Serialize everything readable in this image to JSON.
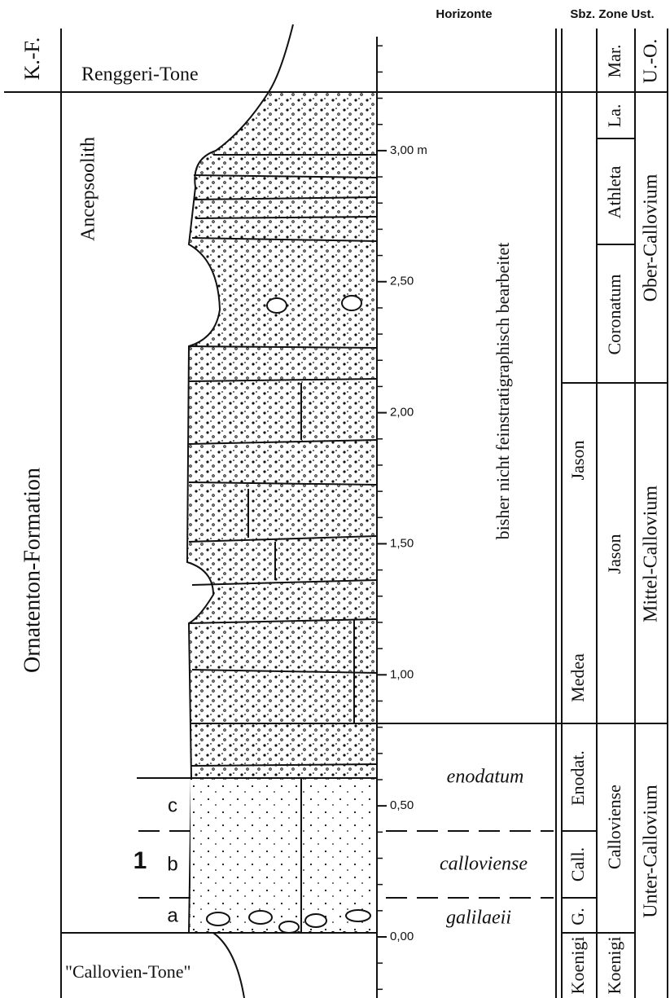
{
  "headers": {
    "horizonte": "Horizonte",
    "sbz_zone_ust": "Sbz. Zone Ust."
  },
  "formation": {
    "abbr": "K.-F.",
    "name": "Ornatenton-Formation"
  },
  "units": {
    "upper": "Renggeri-Tone",
    "member": "Ancepsoolith",
    "lower": "\"Callovien-Tone\""
  },
  "scale": {
    "ticks": [
      {
        "value": 0,
        "label": "0,00"
      },
      {
        "value": 0.5,
        "label": "0,50"
      },
      {
        "value": 1,
        "label": "1,00"
      },
      {
        "value": 1.5,
        "label": "1,50"
      },
      {
        "value": 2,
        "label": "2,00"
      },
      {
        "value": 2.5,
        "label": "2,50"
      },
      {
        "value": 3,
        "label": "3,00 m"
      }
    ]
  },
  "bed": {
    "number": "1",
    "subbeds": {
      "a": "a",
      "b": "b",
      "c": "c"
    }
  },
  "horizonte": {
    "note": "bisher nicht feinstratigraphisch bearbeitet",
    "items": [
      "enodatum",
      "calloviense",
      "galilaeii"
    ]
  },
  "subzones": [
    "Jason",
    "Medea",
    "Enodat.",
    "Call.",
    "G.",
    "Koenigi"
  ],
  "zones": [
    "Mar.",
    "La.",
    "Athleta",
    "Coronatum",
    "Jason",
    "Calloviense",
    "Koenigi"
  ],
  "stages": [
    "U.-O.",
    "Ober-Callovium",
    "Mittel-Callovium",
    "Unter-Callovium"
  ]
}
